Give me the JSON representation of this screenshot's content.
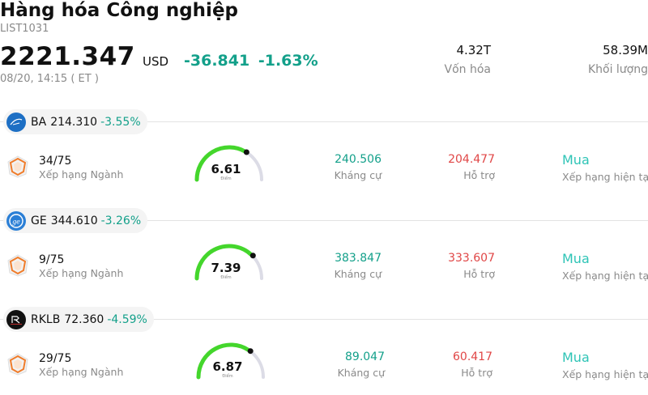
{
  "header": {
    "title": "Hàng hóa Công nghiệp",
    "code": "LIST1031",
    "price": "2221.347",
    "currency": "USD",
    "change": "-36.841",
    "change_pct": "-1.63%",
    "time": "08/20, 14:15  ( ET )",
    "market_cap_value": "4.32T",
    "market_cap_label": "Vốn hóa",
    "volume_value": "58.39M",
    "volume_label": "Khối lượng"
  },
  "colors": {
    "up_green": "#13a08a",
    "down_red": "#e04646",
    "rating_teal": "#2ec4b6",
    "gauge_green": "#44d62c",
    "gauge_track": "#dcdce6"
  },
  "stocks": [
    {
      "symbol": "BA",
      "price": "214.310",
      "change_pct": "-3.55%",
      "logo_icon": "boeing-logo-icon",
      "rank": "34/75",
      "rank_label": "Xếp hạng Ngành",
      "score": "6.61",
      "score_fraction": 0.661,
      "score_label": "Điểm",
      "resistance": "240.506",
      "resistance_label": "Kháng cự",
      "support": "204.477",
      "support_label": "Hỗ trợ",
      "rating": "Mua",
      "rating_label": "Xếp hạng hiện tại"
    },
    {
      "symbol": "GE",
      "price": "344.610",
      "change_pct": "-3.26%",
      "logo_icon": "ge-logo-icon",
      "rank": "9/75",
      "rank_label": "Xếp hạng Ngành",
      "score": "7.39",
      "score_fraction": 0.739,
      "score_label": "Điểm",
      "resistance": "383.847",
      "resistance_label": "Kháng cự",
      "support": "333.607",
      "support_label": "Hỗ trợ",
      "rating": "Mua",
      "rating_label": "Xếp hạng hiện tại"
    },
    {
      "symbol": "RKLB",
      "price": "72.360",
      "change_pct": "-4.59%",
      "logo_icon": "rocket-lab-logo-icon",
      "rank": "29/75",
      "rank_label": "Xếp hạng Ngành",
      "score": "6.87",
      "score_fraction": 0.687,
      "score_label": "Điểm",
      "resistance": "89.047",
      "resistance_label": "Kháng cự",
      "support": "60.417",
      "support_label": "Hỗ trợ",
      "rating": "Mua",
      "rating_label": "Xếp hạng hiện tại"
    }
  ]
}
